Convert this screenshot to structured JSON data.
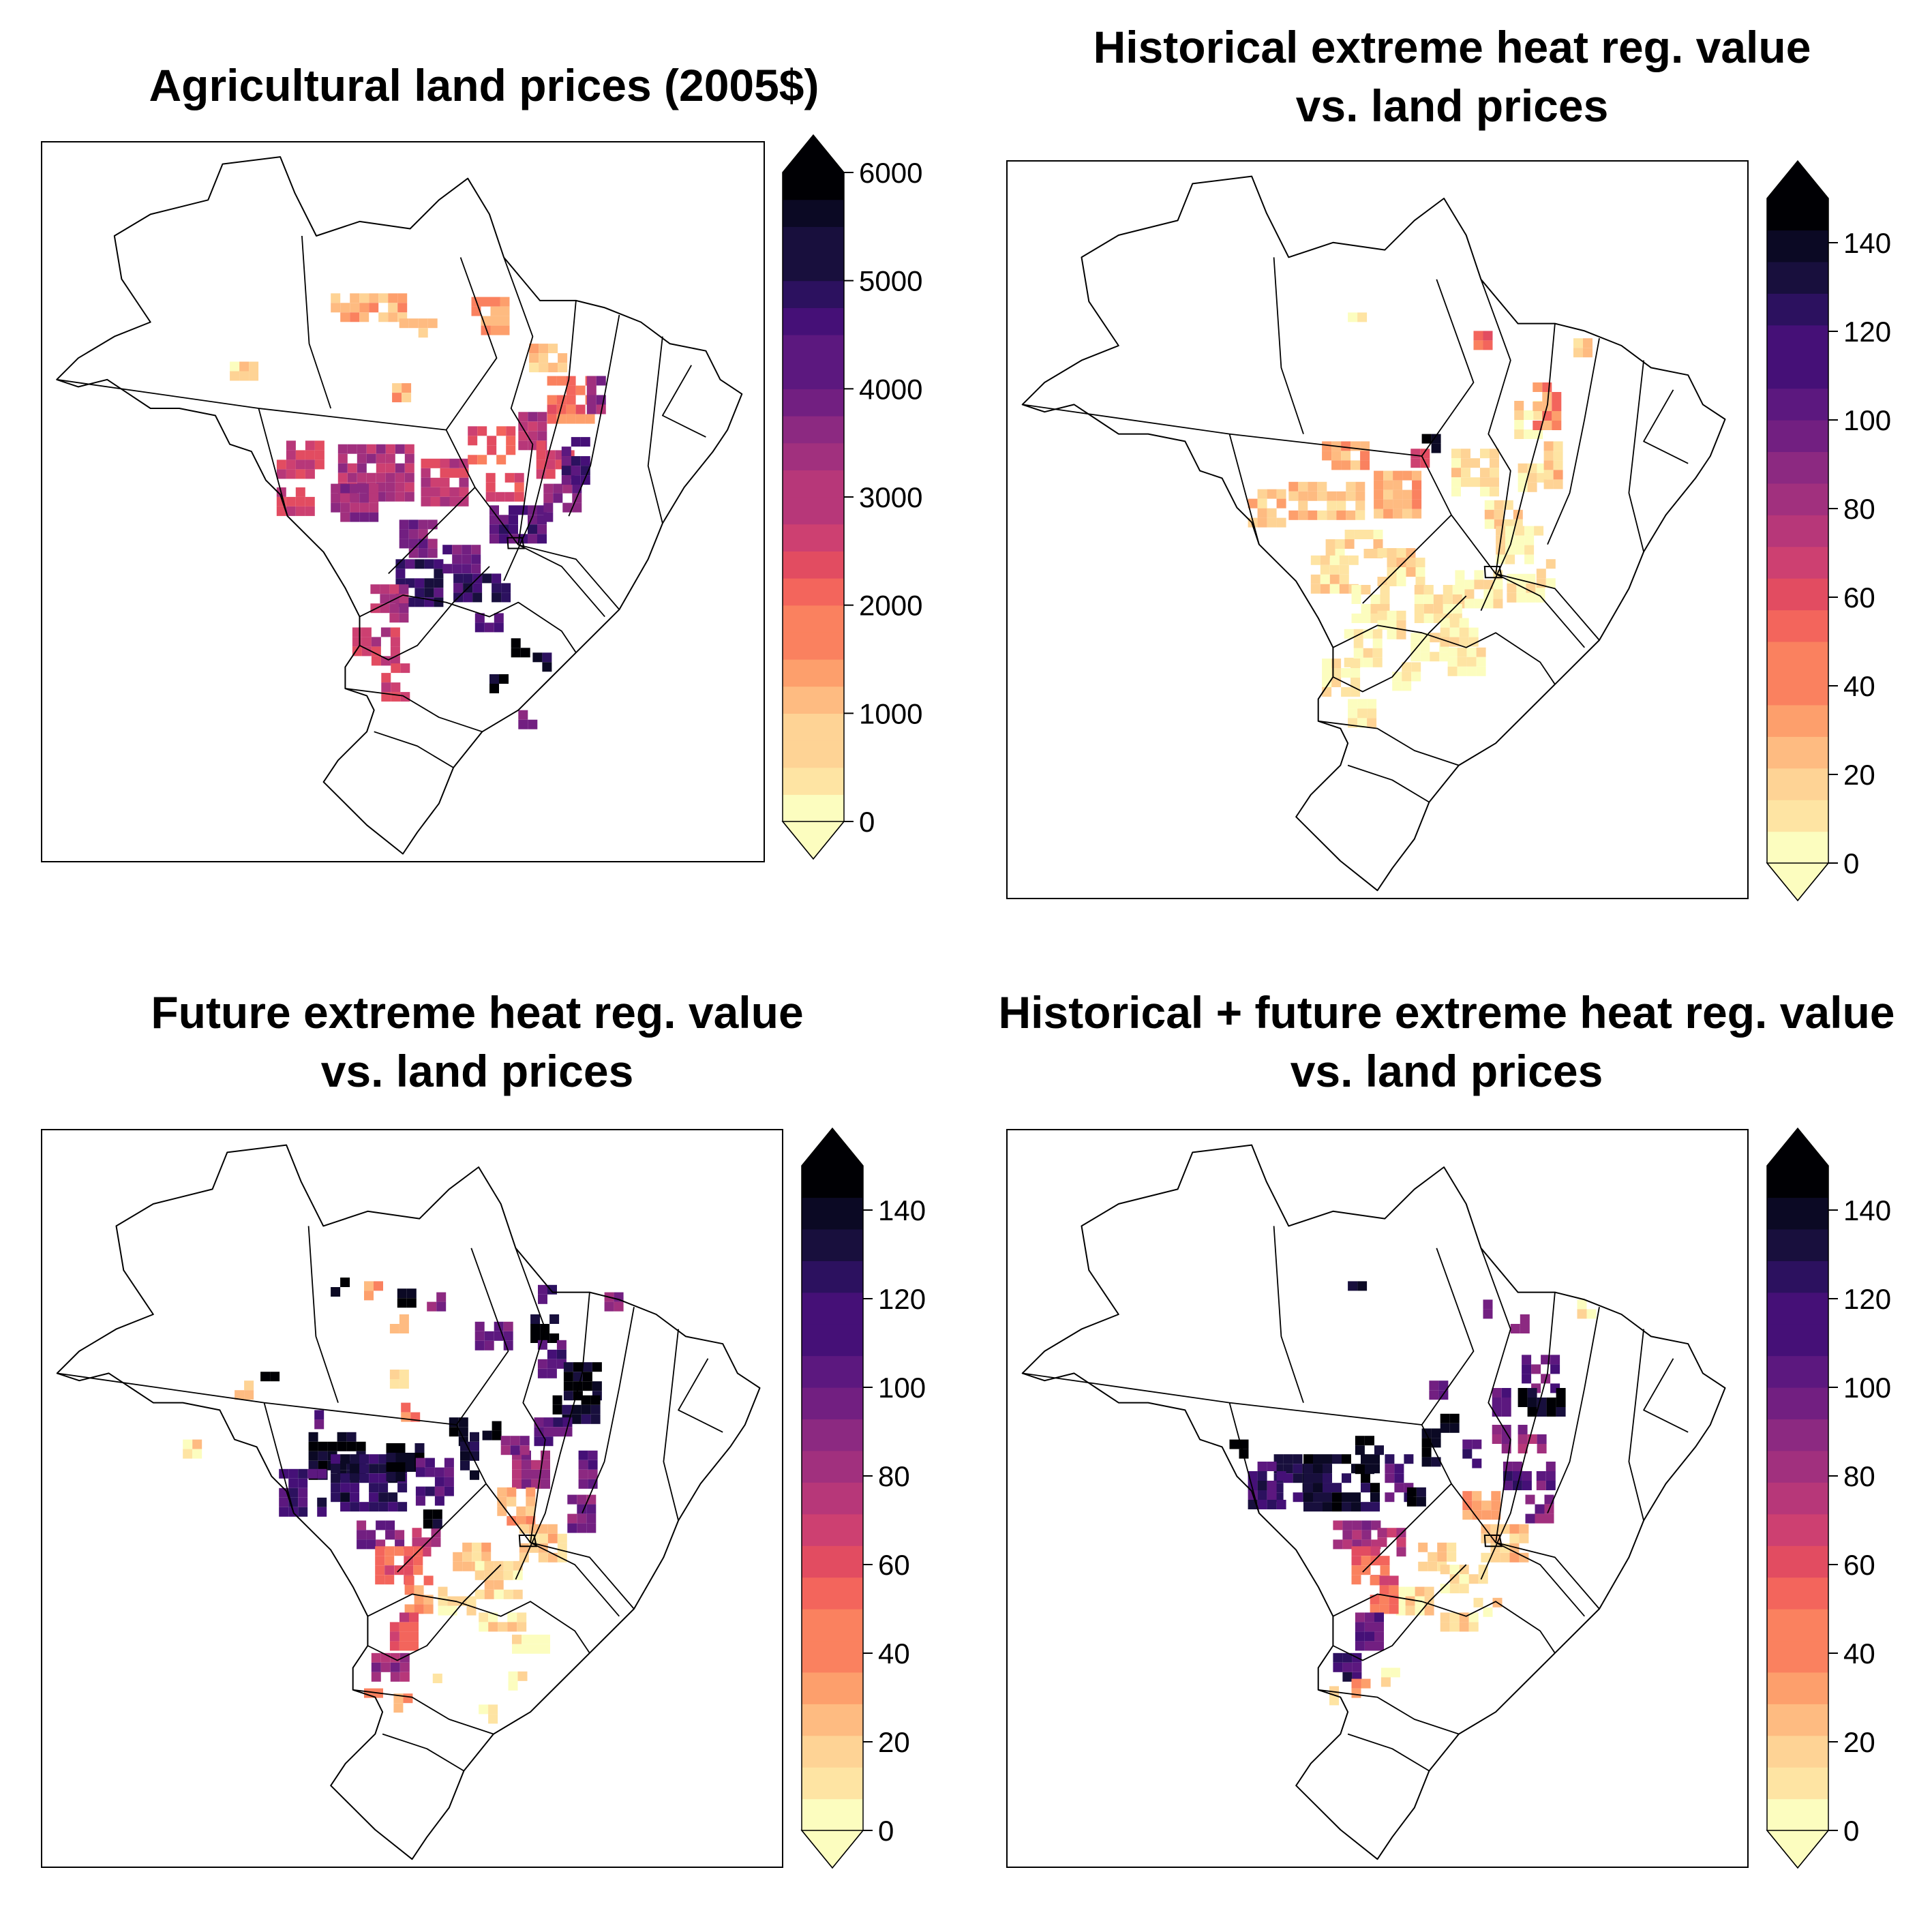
{
  "colors": {
    "background": "#ffffff",
    "outline": "#000000",
    "palette": [
      "#fcfdbf",
      "#fee4a3",
      "#fed395",
      "#febb81",
      "#fd9f6c",
      "#fa815f",
      "#f3655c",
      "#e24c61",
      "#cd4071",
      "#b73779",
      "#a1307e",
      "#8c2981",
      "#721f81",
      "#5c187f",
      "#451077",
      "#2c115f",
      "#180f3d",
      "#0b0924",
      "#000004"
    ]
  },
  "panels": [
    {
      "id": "land-prices",
      "title_lines": [
        "Agricultural land prices (2005$)"
      ],
      "colorbar": {
        "min": 0,
        "max": 6000,
        "steps": 24,
        "ticks": [
          "0",
          "1000",
          "2000",
          "3000",
          "4000",
          "5000",
          "6000"
        ],
        "extend": "both"
      }
    },
    {
      "id": "historical",
      "title_lines": [
        "Historical extreme heat reg. value",
        "vs. land prices"
      ],
      "colorbar": {
        "min": 0,
        "max": 150,
        "steps": 21,
        "ticks": [
          "0",
          "20",
          "40",
          "60",
          "80",
          "100",
          "120",
          "140"
        ],
        "extend": "both"
      }
    },
    {
      "id": "future",
      "title_lines": [
        "Future extreme heat reg. value",
        "vs. land prices"
      ],
      "colorbar": {
        "min": 0,
        "max": 150,
        "steps": 21,
        "ticks": [
          "0",
          "20",
          "40",
          "60",
          "80",
          "100",
          "120",
          "140"
        ],
        "extend": "both"
      }
    },
    {
      "id": "combined",
      "title_lines": [
        "Historical + future extreme heat reg. value",
        "vs. land prices"
      ],
      "colorbar": {
        "min": 0,
        "max": 150,
        "steps": 21,
        "ticks": [
          "0",
          "20",
          "40",
          "60",
          "80",
          "100",
          "120",
          "140"
        ],
        "extend": "both"
      }
    }
  ]
}
